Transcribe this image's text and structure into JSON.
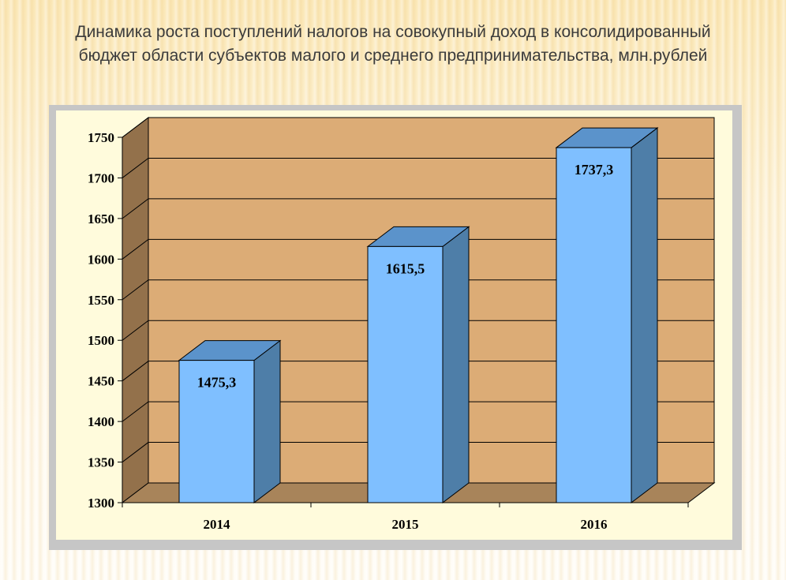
{
  "slide": {
    "title": "Динамика роста поступлений налогов на совокупный доход в консолидированный бюджет области субъектов малого и среднего предпринимательства, млн.рублей"
  },
  "chart_data": {
    "type": "bar",
    "style": "3d-column",
    "title": "Динамика роста поступлений налогов на совокупный доход в консолидированный бюджет области субъектов малого и среднего предпринимательства, млн.рублей",
    "categories": [
      "2014",
      "2015",
      "2016"
    ],
    "values": [
      1475.3,
      1615.5,
      1737.3
    ],
    "data_labels": [
      "1475,3",
      "1615,5",
      "1737,3"
    ],
    "ylim": [
      1300,
      1750
    ],
    "y_ticks": [
      1300,
      1350,
      1400,
      1450,
      1500,
      1550,
      1600,
      1650,
      1700,
      1750
    ],
    "grid": true,
    "legend": "none",
    "colors": {
      "bar_front": "#7fbfff",
      "bar_side": "#4e7ea8",
      "bar_top": "#5b93cb",
      "wall": "#dcac76",
      "side_wall": "#93714b",
      "floor": "#a8845a",
      "chart_area": "#fffbdc",
      "frame": "#c6c6c6"
    }
  }
}
